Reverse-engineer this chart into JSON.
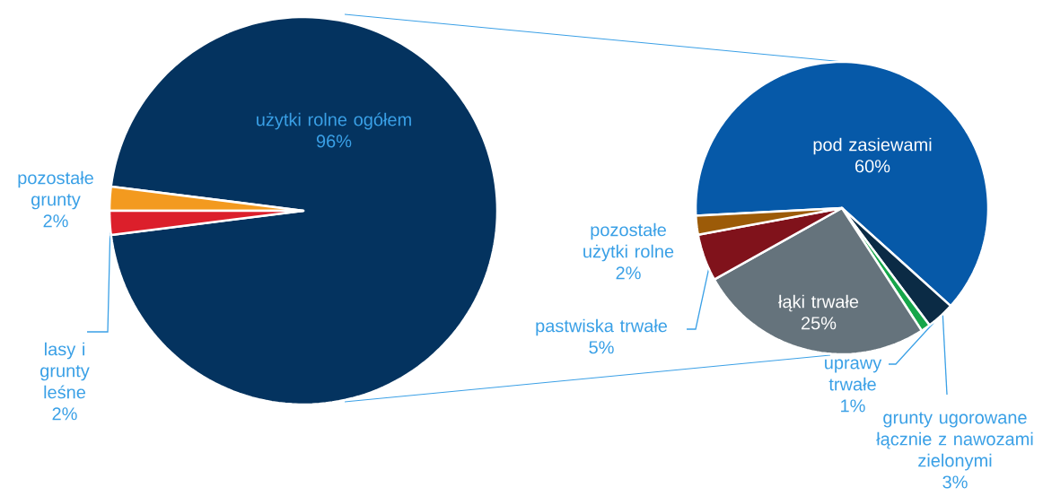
{
  "chart_data": [
    {
      "type": "pie",
      "categories": [
        "użytki rolne ogółem",
        "pozostałe grunty",
        "lasy i grunty leśne"
      ],
      "values": [
        96,
        2,
        2
      ],
      "value_labels": [
        "96%",
        "2%",
        "2%"
      ],
      "colors": [
        "#04335f",
        "#f39a1f",
        "#dc1f2b"
      ]
    },
    {
      "type": "pie",
      "categories": [
        "pod zasiewami",
        "grunty ugorowane łącznie z nawozami zielonymi",
        "uprawy trwałe",
        "łąki trwałe",
        "pastwiska trwałe",
        "pozostałe użytki rolne"
      ],
      "values": [
        60,
        3,
        1,
        25,
        5,
        2
      ],
      "value_labels": [
        "60%",
        "3%",
        "1%",
        "25%",
        "5%",
        "2%"
      ],
      "colors": [
        "#0659a8",
        "#0b2b45",
        "#16a64a",
        "#65737c",
        "#80121b",
        "#9c5b08"
      ]
    }
  ]
}
